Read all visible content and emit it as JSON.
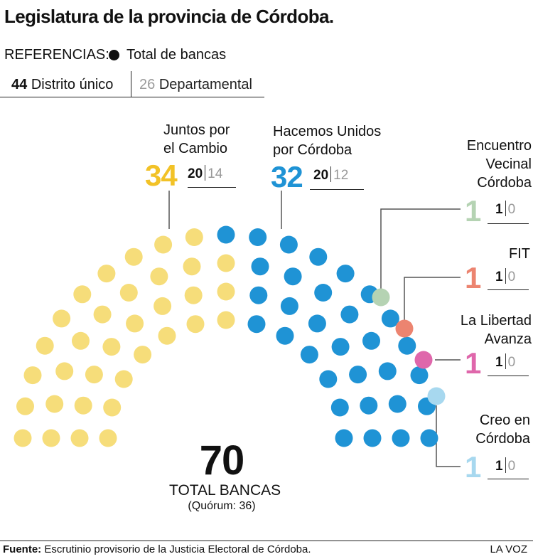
{
  "title": "Legislatura de la provincia de Córdoba.",
  "legend": {
    "label": "REFERENCIAS:",
    "total_label": "Total de bancas",
    "distrito_value": "44",
    "distrito_label": "Distrito único",
    "departamental_value": "26",
    "departamental_label": "Departamental"
  },
  "colors": {
    "juntos": "#f6dd7a",
    "hacemos": "#1f93d5",
    "encuentro": "#b5d3b3",
    "fit": "#ec8470",
    "libertad": "#df67ab",
    "creo": "#a7d8ef"
  },
  "chart_data": {
    "type": "parliament",
    "total": "70",
    "total_label": "TOTAL BANCAS",
    "quorum": "(Quórum: 36)",
    "series": [
      {
        "key": "juntos",
        "name": "Juntos por el Cambio",
        "seats": 34,
        "distrito": 20,
        "departamental": 14,
        "color": "#f6dd7a",
        "big_color": "#f2c227"
      },
      {
        "key": "hacemos",
        "name": "Hacemos Unidos por Córdoba",
        "seats": 32,
        "distrito": 20,
        "departamental": 12,
        "color": "#1f93d5",
        "big_color": "#1f93d5"
      },
      {
        "key": "encuentro",
        "name": "Encuentro Vecinal Córdoba",
        "seats": 1,
        "distrito": 1,
        "departamental": 0,
        "color": "#b5d3b3",
        "big_color": "#b5d3b3"
      },
      {
        "key": "fit",
        "name": "FIT",
        "seats": 1,
        "distrito": 1,
        "departamental": 0,
        "color": "#ec8470",
        "big_color": "#ec8470"
      },
      {
        "key": "libertad",
        "name": "La Libertad Avanza",
        "seats": 1,
        "distrito": 1,
        "departamental": 0,
        "color": "#df67ab",
        "big_color": "#df67ab"
      },
      {
        "key": "creo",
        "name": "Creo en Córdoba",
        "seats": 1,
        "distrito": 1,
        "departamental": 0,
        "color": "#a7d8ef",
        "big_color": "#a7d8ef"
      }
    ]
  },
  "labels": {
    "juntos_l1": "Juntos por",
    "juntos_l2": "el Cambio",
    "hacemos_l1": "Hacemos Unidos",
    "hacemos_l2": "por Córdoba",
    "encuentro_l1": "Encuentro",
    "encuentro_l2": "Vecinal",
    "encuentro_l3": "Córdoba",
    "fit_l1": "FIT",
    "libertad_l1": "La Libertad",
    "libertad_l2": "Avanza",
    "creo_l1": "Creo en",
    "creo_l2": "Córdoba"
  },
  "footer": {
    "source_label": "Fuente:",
    "source_text": "Escrutinio provisorio de la Justicia Electoral de Córdoba.",
    "brand": "LA VOZ"
  }
}
